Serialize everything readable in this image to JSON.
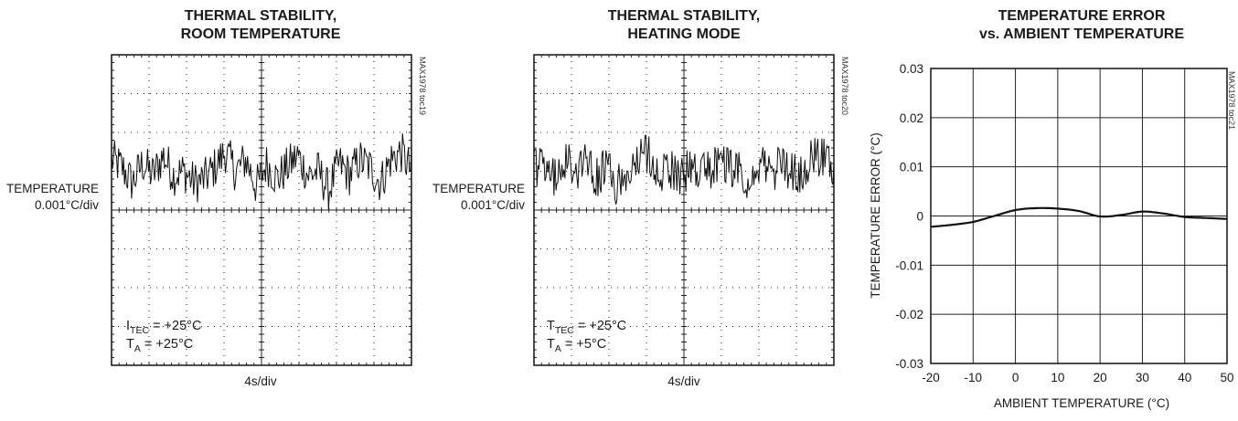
{
  "colors": {
    "trace": "#111111",
    "grid": "#222222",
    "frame": "#111111"
  },
  "chart_data": [
    {
      "type": "line",
      "id": "c1",
      "title": [
        "THERMAL STABILITY,",
        "ROOM TEMPERATURE"
      ],
      "ylabel": [
        "TEMPERATURE",
        "0.001°C/div"
      ],
      "xlabel": "4s/div",
      "code": "MAX1978 toc19",
      "grid": "dotted-8x8",
      "annotations": [
        {
          "main": "I",
          "sub": "TEC",
          "rest": " = +25°C"
        },
        {
          "main": "T",
          "sub": "A",
          "rest": " = +25°C"
        }
      ],
      "y_divisions_above_center": [
        1.3,
        1.1,
        0.7,
        1.2,
        0.9,
        1.4,
        0.9,
        1.0,
        0.7,
        0.8,
        1.1,
        1.5,
        1.0,
        1.3,
        0.6,
        1.2,
        0.8,
        1.1,
        1.4,
        0.9,
        1.0,
        0.5,
        1.2,
        0.9,
        1.3,
        1.1,
        0.7,
        1.3,
        1.5,
        1.0
      ]
    },
    {
      "type": "line",
      "id": "c2",
      "title": [
        "THERMAL STABILITY,",
        "HEATING MODE"
      ],
      "ylabel": [
        "TEMPERATURE",
        "0.001°C/div"
      ],
      "xlabel": "4s/div",
      "code": "MAX1978 toc20",
      "grid": "dotted-8x8",
      "annotations": [
        {
          "main": "T",
          "sub": "TEC",
          "rest": " = +25°C"
        },
        {
          "main": "T",
          "sub": "A",
          "rest": " = +5°C"
        }
      ],
      "y_divisions_above_center": [
        1.2,
        1.0,
        0.8,
        1.3,
        1.0,
        1.4,
        0.8,
        1.1,
        0.6,
        0.9,
        1.2,
        1.5,
        0.9,
        1.2,
        0.7,
        1.1,
        0.9,
        1.0,
        1.3,
        1.0,
        1.1,
        0.6,
        1.1,
        1.0,
        1.2,
        1.0,
        0.8,
        1.4,
        1.4,
        1.1
      ]
    },
    {
      "type": "line",
      "id": "c3",
      "title": [
        "TEMPERATURE ERROR",
        "vs. AMBIENT TEMPERATURE"
      ],
      "xlabel": "AMBIENT TEMPERATURE (°C)",
      "ylabel": "TEMPERATURE ERROR (°C)",
      "code": "MAX1978 toc21",
      "xlim": [
        -20,
        50
      ],
      "ylim": [
        -0.03,
        0.03
      ],
      "xticks": [
        -20,
        -10,
        0,
        10,
        20,
        30,
        40,
        50
      ],
      "xtick_labels": [
        "-20",
        "-10",
        "0",
        "10",
        "20",
        "30",
        "40",
        "50"
      ],
      "yticks": [
        -0.03,
        -0.02,
        -0.01,
        0,
        0.01,
        0.02,
        0.03
      ],
      "ytick_labels": [
        "-0.03",
        "-0.02",
        "-0.01",
        "0",
        "0.01",
        "0.02",
        "0.03"
      ],
      "grid": true,
      "x": [
        -20,
        -15,
        -10,
        -5,
        0,
        5,
        10,
        15,
        20,
        25,
        30,
        35,
        40,
        45,
        50
      ],
      "y": [
        -0.0022,
        -0.0018,
        -0.0012,
        0.0,
        0.0012,
        0.0016,
        0.0015,
        0.001,
        -0.0001,
        0.0002,
        0.0009,
        0.0005,
        -0.0002,
        -0.0004,
        -0.0006
      ]
    }
  ]
}
